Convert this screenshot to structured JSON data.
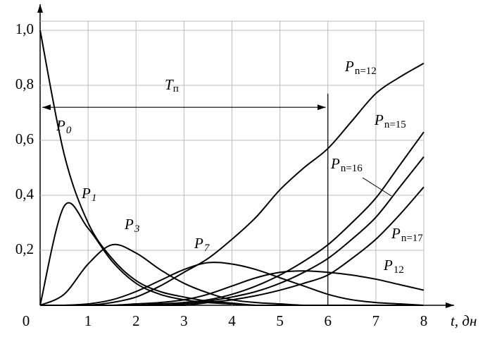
{
  "chart_data": {
    "type": "line",
    "x": [
      0,
      0.5,
      1,
      1.5,
      2,
      2.5,
      3,
      3.5,
      4,
      4.5,
      5,
      5.5,
      6,
      6.5,
      7,
      7.5,
      8
    ],
    "series": [
      {
        "name": "P",
        "subscript": "0",
        "color": "#000",
        "values": [
          1.0,
          0.55,
          0.3,
          0.17,
          0.09,
          0.05,
          0.03,
          0.015,
          0.008,
          0,
          0,
          0,
          0,
          0,
          0,
          0,
          0
        ]
      },
      {
        "name": "P",
        "subscript": "1",
        "color": "#000",
        "values": [
          0,
          0.36,
          0.28,
          0.16,
          0.08,
          0.04,
          0.02,
          0.01,
          0.005,
          0,
          0,
          0,
          0,
          0,
          0,
          0,
          0
        ]
      },
      {
        "name": "P",
        "subscript": "3",
        "color": "#000",
        "values": [
          0,
          0.04,
          0.15,
          0.22,
          0.19,
          0.13,
          0.08,
          0.045,
          0.02,
          0.01,
          0.005,
          0,
          0,
          0,
          0,
          0,
          0
        ]
      },
      {
        "name": "P",
        "subscript": "7",
        "color": "#000",
        "values": [
          0,
          0,
          0.005,
          0.02,
          0.05,
          0.09,
          0.13,
          0.155,
          0.15,
          0.13,
          0.1,
          0.07,
          0.04,
          0.02,
          0.01,
          0.005,
          0
        ]
      },
      {
        "name": "P",
        "subscript": "12",
        "color": "#000",
        "values": [
          0,
          0,
          0,
          0,
          0.005,
          0.01,
          0.02,
          0.04,
          0.07,
          0.1,
          0.12,
          0.125,
          0.12,
          0.11,
          0.095,
          0.075,
          0.055
        ]
      },
      {
        "name": "P",
        "subscript": "n=12",
        "color": "#000",
        "values": [
          0,
          0,
          0,
          0.01,
          0.03,
          0.07,
          0.12,
          0.17,
          0.24,
          0.32,
          0.42,
          0.5,
          0.57,
          0.67,
          0.77,
          0.83,
          0.88
        ]
      },
      {
        "name": "P",
        "subscript": "n=15",
        "color": "#000",
        "values": [
          0,
          0,
          0,
          0,
          0,
          0.005,
          0.01,
          0.02,
          0.04,
          0.07,
          0.11,
          0.16,
          0.22,
          0.3,
          0.39,
          0.51,
          0.63
        ]
      },
      {
        "name": "P",
        "subscript": "n=16",
        "color": "#000",
        "values": [
          0,
          0,
          0,
          0,
          0,
          0,
          0.005,
          0.015,
          0.03,
          0.05,
          0.08,
          0.12,
          0.17,
          0.24,
          0.32,
          0.43,
          0.54
        ]
      },
      {
        "name": "P",
        "subscript": "n=17",
        "color": "#000",
        "values": [
          0,
          0,
          0,
          0,
          0,
          0,
          0,
          0.01,
          0.02,
          0.035,
          0.055,
          0.08,
          0.11,
          0.17,
          0.24,
          0.33,
          0.43
        ]
      }
    ],
    "annotation": {
      "label": "T",
      "subscript": "п",
      "y": 0.72,
      "x": [
        0,
        6
      ],
      "top": 0.77
    },
    "xlabel": "t, дн",
    "xlim": [
      0,
      8
    ],
    "ylim": [
      0,
      1.0
    ],
    "xticks": [
      0,
      1,
      2,
      3,
      4,
      5,
      6,
      7,
      8
    ],
    "yticks": [
      {
        "value": 0.2,
        "label": "0,2"
      },
      {
        "value": 0.4,
        "label": "0,4"
      },
      {
        "value": 0.6,
        "label": "0,6"
      },
      {
        "value": 0.8,
        "label": "0,8"
      },
      {
        "value": 1.0,
        "label": "1,0"
      }
    ],
    "grid": true
  }
}
